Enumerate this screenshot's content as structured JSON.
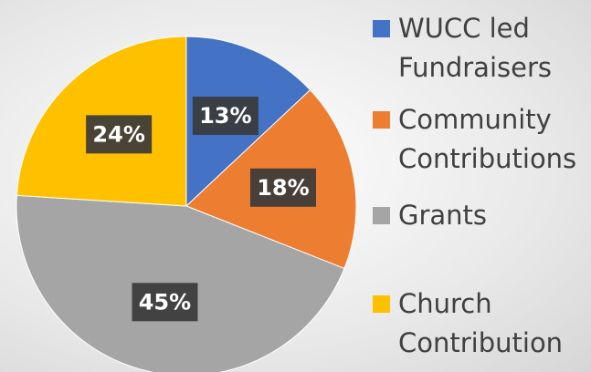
{
  "chart_data": {
    "type": "pie",
    "series": [
      {
        "name": "WUCC led Fundraisers",
        "color": "#4472c4",
        "values": [
          13
        ],
        "value_labels": [
          "13%"
        ]
      },
      {
        "name": "Community Contributions",
        "color": "#ed7d31",
        "values": [
          18
        ],
        "value_labels": [
          "18%"
        ]
      },
      {
        "name": "Grants",
        "color": "#a5a5a5",
        "values": [
          45
        ],
        "value_labels": [
          "45%"
        ]
      },
      {
        "name": "Church Contribution",
        "color": "#ffc000",
        "values": [
          24
        ],
        "value_labels": [
          "24%"
        ]
      }
    ],
    "legend": "right"
  }
}
